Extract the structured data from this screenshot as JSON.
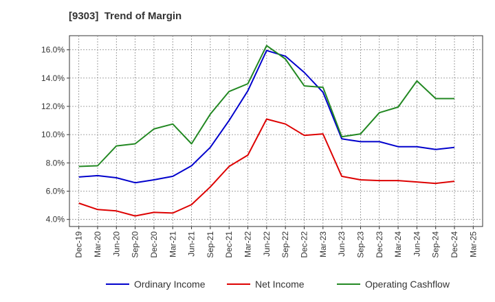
{
  "chart_data": {
    "type": "line",
    "title": "[9303]  Trend of Margin",
    "xlabel": "",
    "ylabel": "",
    "x_categories": [
      "Dec-19",
      "Mar-20",
      "Jun-20",
      "Sep-20",
      "Dec-20",
      "Mar-21",
      "Jun-21",
      "Sep-21",
      "Dec-21",
      "Mar-22",
      "Jun-22",
      "Sep-22",
      "Dec-22",
      "Mar-23",
      "Jun-23",
      "Sep-23",
      "Dec-23",
      "Mar-24",
      "Jun-24",
      "Sep-24",
      "Dec-24",
      "Mar-25"
    ],
    "ylim": [
      3.5,
      17.0
    ],
    "yticks": [
      4.0,
      6.0,
      8.0,
      10.0,
      12.0,
      14.0,
      16.0
    ],
    "ytick_labels": [
      "4.0%",
      "6.0%",
      "8.0%",
      "10.0%",
      "12.0%",
      "14.0%",
      "16.0%"
    ],
    "grid": true,
    "legend_position": "bottom",
    "series": [
      {
        "name": "Ordinary Income",
        "color": "#0000cc",
        "values": [
          7.0,
          7.1,
          6.95,
          6.6,
          6.8,
          7.05,
          7.8,
          9.1,
          11.0,
          13.1,
          15.95,
          15.55,
          14.4,
          13.0,
          9.7,
          9.5,
          9.5,
          9.15,
          9.15,
          8.95,
          9.1,
          null
        ]
      },
      {
        "name": "Net Income",
        "color": "#dd0000",
        "values": [
          5.15,
          4.7,
          4.6,
          4.25,
          4.5,
          4.45,
          5.05,
          6.3,
          7.75,
          8.55,
          11.1,
          10.75,
          9.95,
          10.05,
          7.05,
          6.8,
          6.75,
          6.75,
          6.65,
          6.55,
          6.7,
          null
        ]
      },
      {
        "name": "Operating Cashflow",
        "color": "#228822",
        "values": [
          7.75,
          7.8,
          9.2,
          9.35,
          10.4,
          10.75,
          9.35,
          11.45,
          13.05,
          13.6,
          16.3,
          15.35,
          13.45,
          13.35,
          9.85,
          10.05,
          11.55,
          11.95,
          13.8,
          12.55,
          12.55,
          null
        ]
      }
    ]
  }
}
